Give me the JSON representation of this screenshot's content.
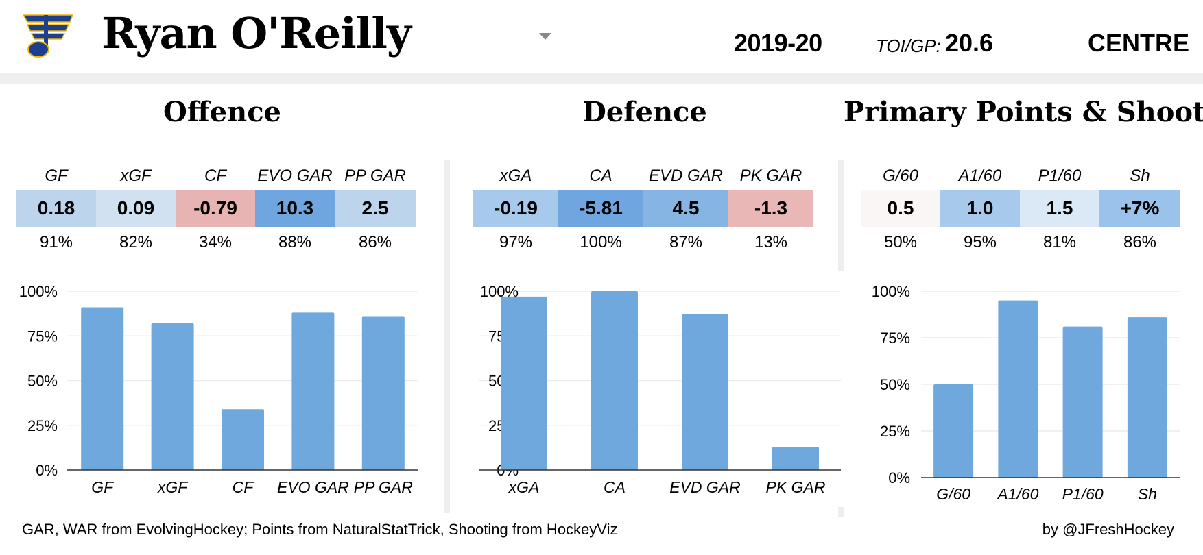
{
  "header": {
    "player_name": "Ryan O'Reilly",
    "season": "2019-20",
    "toi_label": "TOI/GP:",
    "toi_value": "20.6",
    "position": "CENTRE",
    "logo_icon": "st-louis-blues-note-logo",
    "dropdown_icon": "caret-down-icon"
  },
  "sections": [
    {
      "title": "Offence",
      "stats": [
        {
          "label": "GF",
          "value": "0.18",
          "pct": "91%",
          "color": "#bcd4ec"
        },
        {
          "label": "xGF",
          "value": "0.09",
          "pct": "82%",
          "color": "#d2e1f1"
        },
        {
          "label": "CF",
          "value": "-0.79",
          "pct": "34%",
          "color": "#e8b3b3"
        },
        {
          "label": "EVO GAR",
          "value": "10.3",
          "pct": "88%",
          "color": "#6fa6df"
        },
        {
          "label": "PP GAR",
          "value": "2.5",
          "pct": "86%",
          "color": "#bcd4ec"
        }
      ]
    },
    {
      "title": "Defence",
      "stats": [
        {
          "label": "xGA",
          "value": "-0.19",
          "pct": "97%",
          "color": "#a7c9eb"
        },
        {
          "label": "CA",
          "value": "-5.81",
          "pct": "100%",
          "color": "#6fa6df"
        },
        {
          "label": "EVD GAR",
          "value": "4.5",
          "pct": "87%",
          "color": "#86b4e3"
        },
        {
          "label": "PK GAR",
          "value": "-1.3",
          "pct": "13%",
          "color": "#eab7b7"
        }
      ]
    },
    {
      "title": "Primary Points & Shooting",
      "stats": [
        {
          "label": "G/60",
          "value": "0.5",
          "pct": "50%",
          "color": "#fbf6f6"
        },
        {
          "label": "A1/60",
          "value": "1.0",
          "pct": "95%",
          "color": "#a7c9eb"
        },
        {
          "label": "P1/60",
          "value": "1.5",
          "pct": "81%",
          "color": "#dbe8f6"
        },
        {
          "label": "Sh",
          "value": "+7%",
          "pct": "86%",
          "color": "#9ac2ea"
        }
      ]
    }
  ],
  "chart_data": [
    {
      "type": "bar",
      "categories": [
        "GF",
        "xGF",
        "CF",
        "EVO GAR",
        "PP GAR"
      ],
      "values": [
        91,
        82,
        34,
        88,
        86
      ],
      "ylim": [
        0,
        100
      ],
      "yticks": [
        "0%",
        "25%",
        "50%",
        "75%",
        "100%"
      ],
      "grid": true,
      "bar_color": "#6fa8dc"
    },
    {
      "type": "bar",
      "categories": [
        "xGA",
        "CA",
        "EVD GAR",
        "PK GAR"
      ],
      "values": [
        97,
        100,
        87,
        13
      ],
      "ylim": [
        0,
        100
      ],
      "yticks": [
        "0%",
        "25%",
        "50%",
        "75%",
        "100%"
      ],
      "grid": true,
      "bar_color": "#6fa8dc"
    },
    {
      "type": "bar",
      "categories": [
        "G/60",
        "A1/60",
        "P1/60",
        "Sh"
      ],
      "values": [
        50,
        95,
        81,
        86
      ],
      "ylim": [
        0,
        100
      ],
      "yticks": [
        "0%",
        "25%",
        "50%",
        "75%",
        "100%"
      ],
      "grid": true,
      "bar_color": "#6fa8dc"
    }
  ],
  "footer": {
    "source": "GAR, WAR from EvolvingHockey; Points from NaturalStatTrick, Shooting from HockeyViz",
    "credit": "by @JFreshHockey"
  }
}
